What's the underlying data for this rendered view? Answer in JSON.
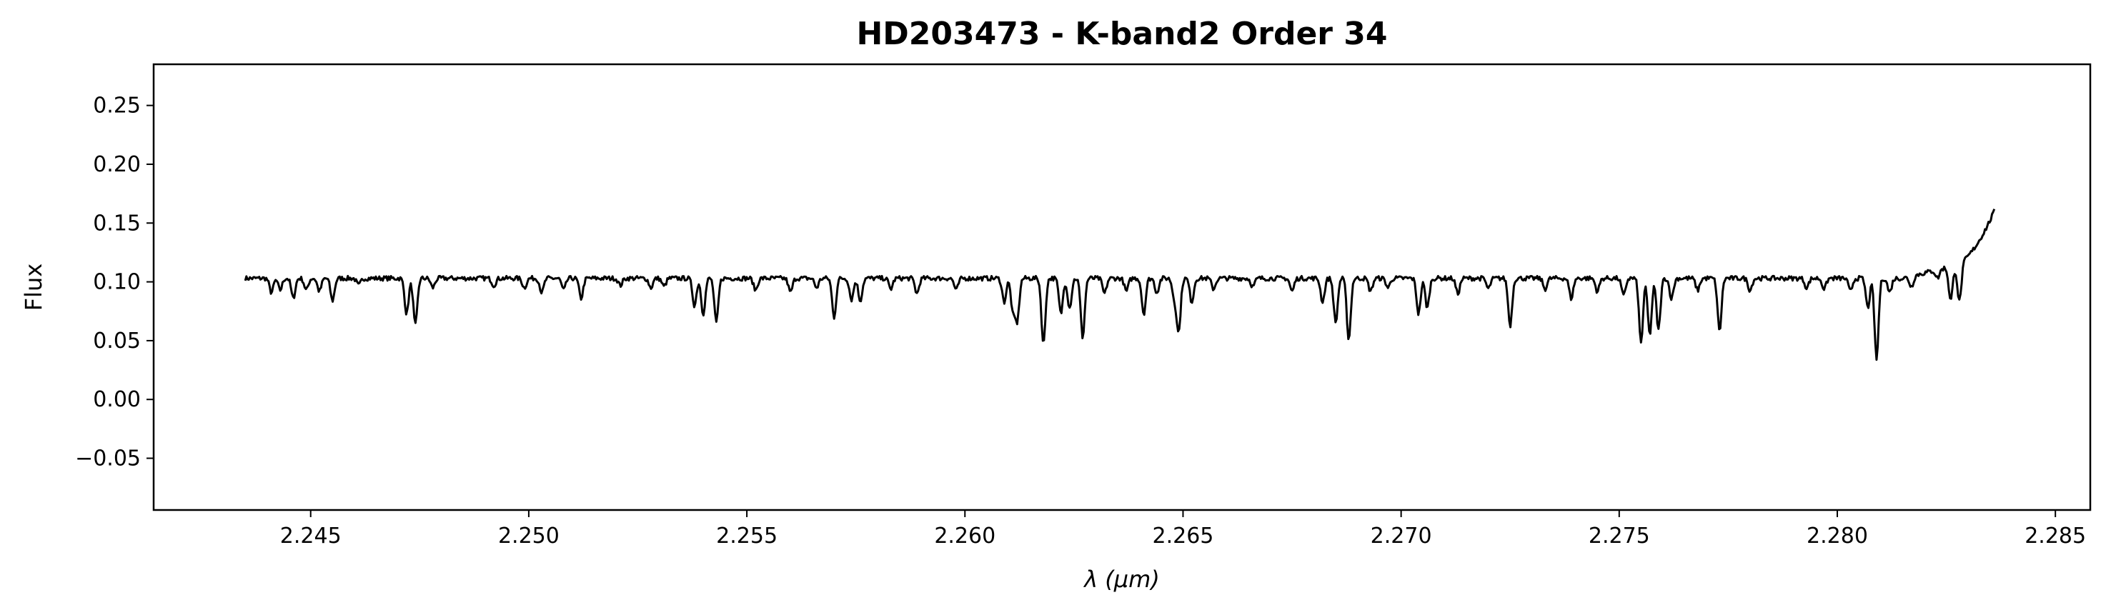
{
  "chart_data": {
    "type": "line",
    "title": "HD203473 - K-band2 Order 34",
    "xlabel_symbol": "λ",
    "xlabel_unit": "(μm)",
    "ylabel": "Flux",
    "xlim": [
      2.2414,
      2.2858
    ],
    "ylim": [
      -0.094,
      0.285
    ],
    "x_ticks": [
      2.245,
      2.25,
      2.255,
      2.26,
      2.265,
      2.27,
      2.275,
      2.28,
      2.285
    ],
    "x_tick_labels": [
      "2.245",
      "2.250",
      "2.255",
      "2.260",
      "2.265",
      "2.270",
      "2.275",
      "2.280",
      "2.285"
    ],
    "y_ticks": [
      -0.05,
      0.0,
      0.05,
      0.1,
      0.15,
      0.2,
      0.25
    ],
    "y_tick_labels": [
      "−0.05",
      "0.00",
      "0.05",
      "0.10",
      "0.15",
      "0.20",
      "0.25"
    ],
    "grid": false,
    "legend": "none",
    "line_color": "#000000",
    "series": [
      {
        "continuum": 0.103,
        "x_range": [
          2.2435,
          2.2836
        ],
        "absorption_lines": [
          [
            2.2441,
            0.012
          ],
          [
            2.2443,
            0.01
          ],
          [
            2.2446,
            0.017
          ],
          [
            2.2449,
            0.01
          ],
          [
            2.2452,
            0.011
          ],
          [
            2.2455,
            0.019
          ],
          [
            2.2461,
            0.006
          ],
          [
            2.2472,
            0.03
          ],
          [
            2.2474,
            0.04
          ],
          [
            2.2478,
            0.008
          ],
          [
            2.2492,
            0.006
          ],
          [
            2.2499,
            0.008
          ],
          [
            2.2503,
            0.012
          ],
          [
            2.2508,
            0.01
          ],
          [
            2.2512,
            0.017
          ],
          [
            2.2521,
            0.006
          ],
          [
            2.2528,
            0.008
          ],
          [
            2.2531,
            0.007
          ],
          [
            2.2538,
            0.023
          ],
          [
            2.254,
            0.03
          ],
          [
            2.2543,
            0.038
          ],
          [
            2.2552,
            0.01
          ],
          [
            2.256,
            0.012
          ],
          [
            2.2566,
            0.008
          ],
          [
            2.257,
            0.033
          ],
          [
            2.2574,
            0.018
          ],
          [
            2.2576,
            0.019
          ],
          [
            2.2583,
            0.009
          ],
          [
            2.2589,
            0.013
          ],
          [
            2.2598,
            0.01
          ],
          [
            2.2609,
            0.02
          ],
          [
            2.2611,
            0.028
          ],
          [
            2.2612,
            0.035
          ],
          [
            2.2618,
            0.056
          ],
          [
            2.2622,
            0.03
          ],
          [
            2.2624,
            0.025
          ],
          [
            2.2627,
            0.05
          ],
          [
            2.2632,
            0.013
          ],
          [
            2.2637,
            0.011
          ],
          [
            2.2641,
            0.03
          ],
          [
            2.2644,
            0.012
          ],
          [
            2.2648,
            0.016
          ],
          [
            2.2649,
            0.045
          ],
          [
            2.2652,
            0.02
          ],
          [
            2.2657,
            0.009
          ],
          [
            2.2666,
            0.007
          ],
          [
            2.2675,
            0.011
          ],
          [
            2.2682,
            0.02
          ],
          [
            2.2685,
            0.038
          ],
          [
            2.2688,
            0.052
          ],
          [
            2.2693,
            0.011
          ],
          [
            2.2697,
            0.008
          ],
          [
            2.2704,
            0.03
          ],
          [
            2.2706,
            0.025
          ],
          [
            2.2713,
            0.013
          ],
          [
            2.272,
            0.009
          ],
          [
            2.2725,
            0.04
          ],
          [
            2.2733,
            0.009
          ],
          [
            2.2739,
            0.017
          ],
          [
            2.2745,
            0.011
          ],
          [
            2.2751,
            0.015
          ],
          [
            2.2755,
            0.055
          ],
          [
            2.2757,
            0.048
          ],
          [
            2.2759,
            0.044
          ],
          [
            2.2762,
            0.017
          ],
          [
            2.2768,
            0.01
          ],
          [
            2.2773,
            0.045
          ],
          [
            2.278,
            0.01
          ],
          [
            2.2793,
            0.008
          ],
          [
            2.2797,
            0.009
          ],
          [
            2.2803,
            0.011
          ],
          [
            2.2807,
            0.025
          ],
          [
            2.2809,
            0.069
          ],
          [
            2.2812,
            0.012
          ],
          [
            2.2817,
            0.009
          ],
          [
            2.2823,
            0.007
          ],
          [
            2.2826,
            0.029
          ],
          [
            2.2828,
            0.032
          ]
        ],
        "rising_edge": {
          "start_x": 2.2815,
          "end_x": 2.2836,
          "start_y": 0.101,
          "mid_x": 2.2827,
          "mid_y": 0.112,
          "end_y": 0.158
        }
      }
    ]
  }
}
